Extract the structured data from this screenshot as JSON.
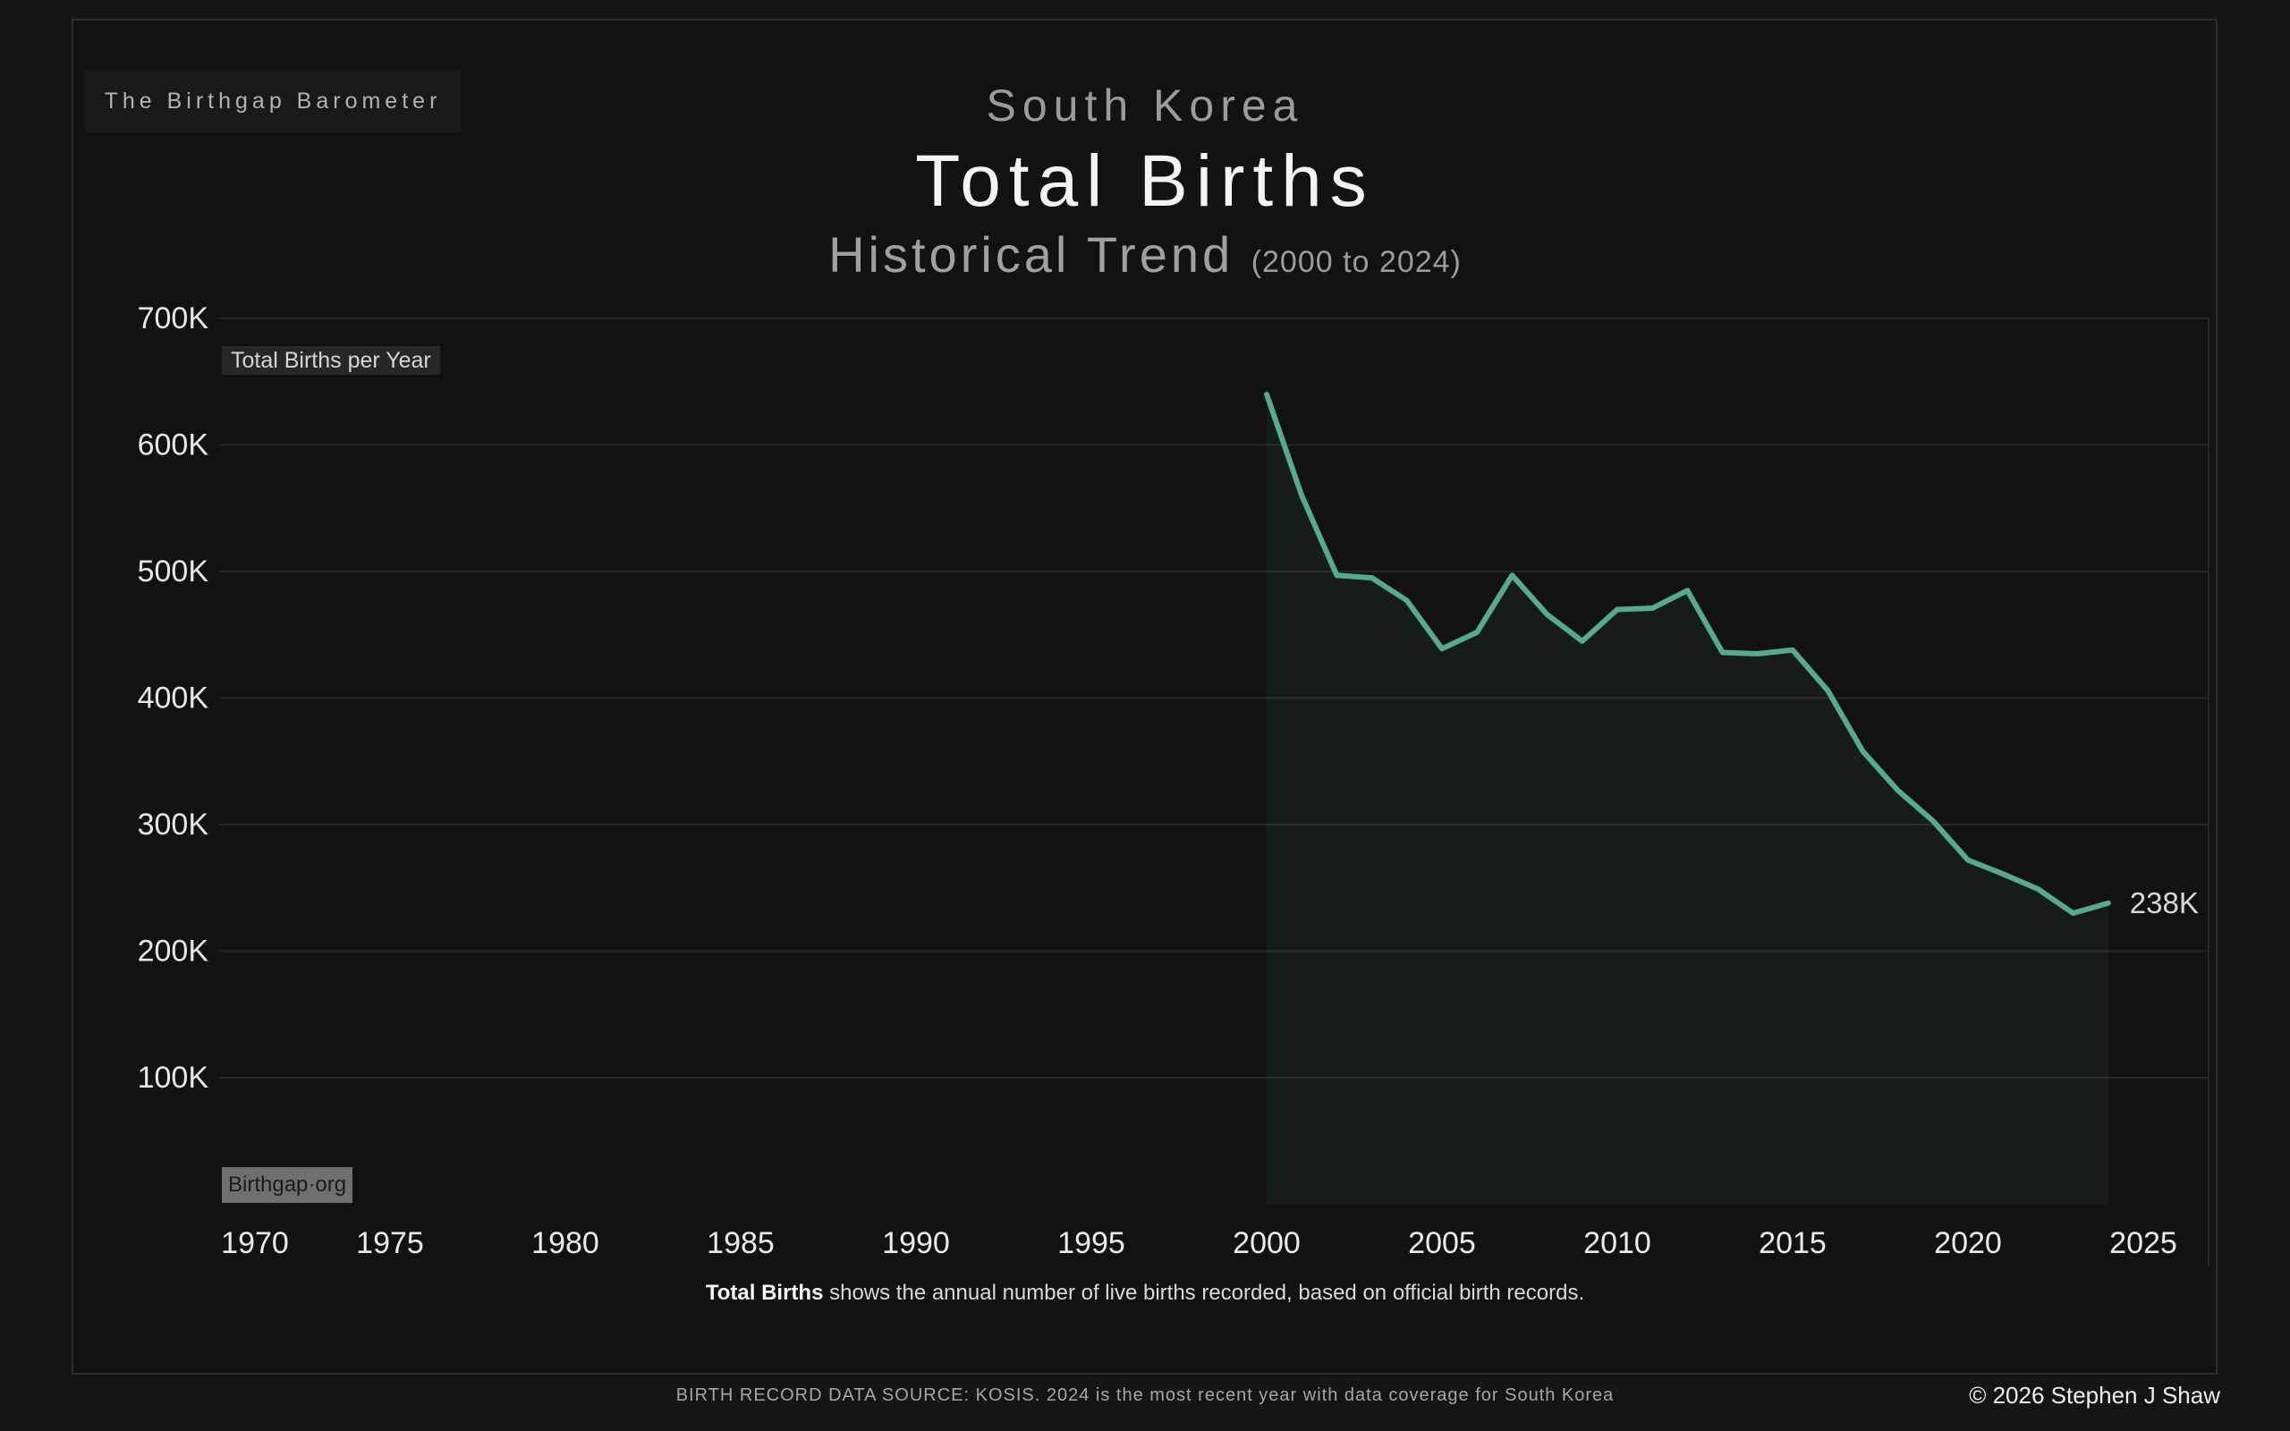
{
  "header": {
    "brand": "The Birthgap Barometer",
    "region": "South Korea",
    "title": "Total Births",
    "subtitle": "Historical Trend",
    "range": "(2000 to 2024)"
  },
  "chart_data": {
    "type": "line",
    "title": "South Korea — Total Births — Historical Trend (2000 to 2024)",
    "series_label": "Total Births per Year",
    "unit": "live births per year, thousands",
    "x": [
      2000,
      2001,
      2002,
      2003,
      2004,
      2005,
      2006,
      2007,
      2008,
      2009,
      2010,
      2011,
      2012,
      2013,
      2014,
      2015,
      2016,
      2017,
      2018,
      2019,
      2020,
      2021,
      2022,
      2023,
      2024
    ],
    "values_thousands": [
      640,
      560,
      497,
      495,
      477,
      439,
      452,
      497,
      466,
      445,
      470,
      471,
      485,
      436,
      435,
      438,
      406,
      358,
      327,
      303,
      272,
      261,
      249,
      230,
      238
    ],
    "end_label": "238K",
    "x_ticks": [
      1970,
      1975,
      1980,
      1985,
      1990,
      1995,
      2000,
      2005,
      2010,
      2015,
      2020,
      2025
    ],
    "y_ticks": [
      {
        "label": "700K",
        "value": 700
      },
      {
        "label": "600K",
        "value": 600
      },
      {
        "label": "500K",
        "value": 500
      },
      {
        "label": "400K",
        "value": 400
      },
      {
        "label": "300K",
        "value": 300
      },
      {
        "label": "200K",
        "value": 200
      },
      {
        "label": "100K",
        "value": 100
      }
    ],
    "ylim_thousands": [
      0,
      700
    ],
    "grid": "horizontal-only",
    "legend_position": "top-left-badge",
    "line_color": "#55ab8c",
    "fill_color": "rgba(85,171,140,0.07)",
    "watermark": "Birthgap·org"
  },
  "caption": {
    "bold": "Total Births",
    "rest": " shows the annual number of live births recorded, based on official birth records."
  },
  "footer": {
    "source": "BIRTH RECORD DATA SOURCE: KOSIS. 2024 is the most recent year with data coverage for South Korea",
    "copyright": "© 2026 Stephen J Shaw"
  }
}
